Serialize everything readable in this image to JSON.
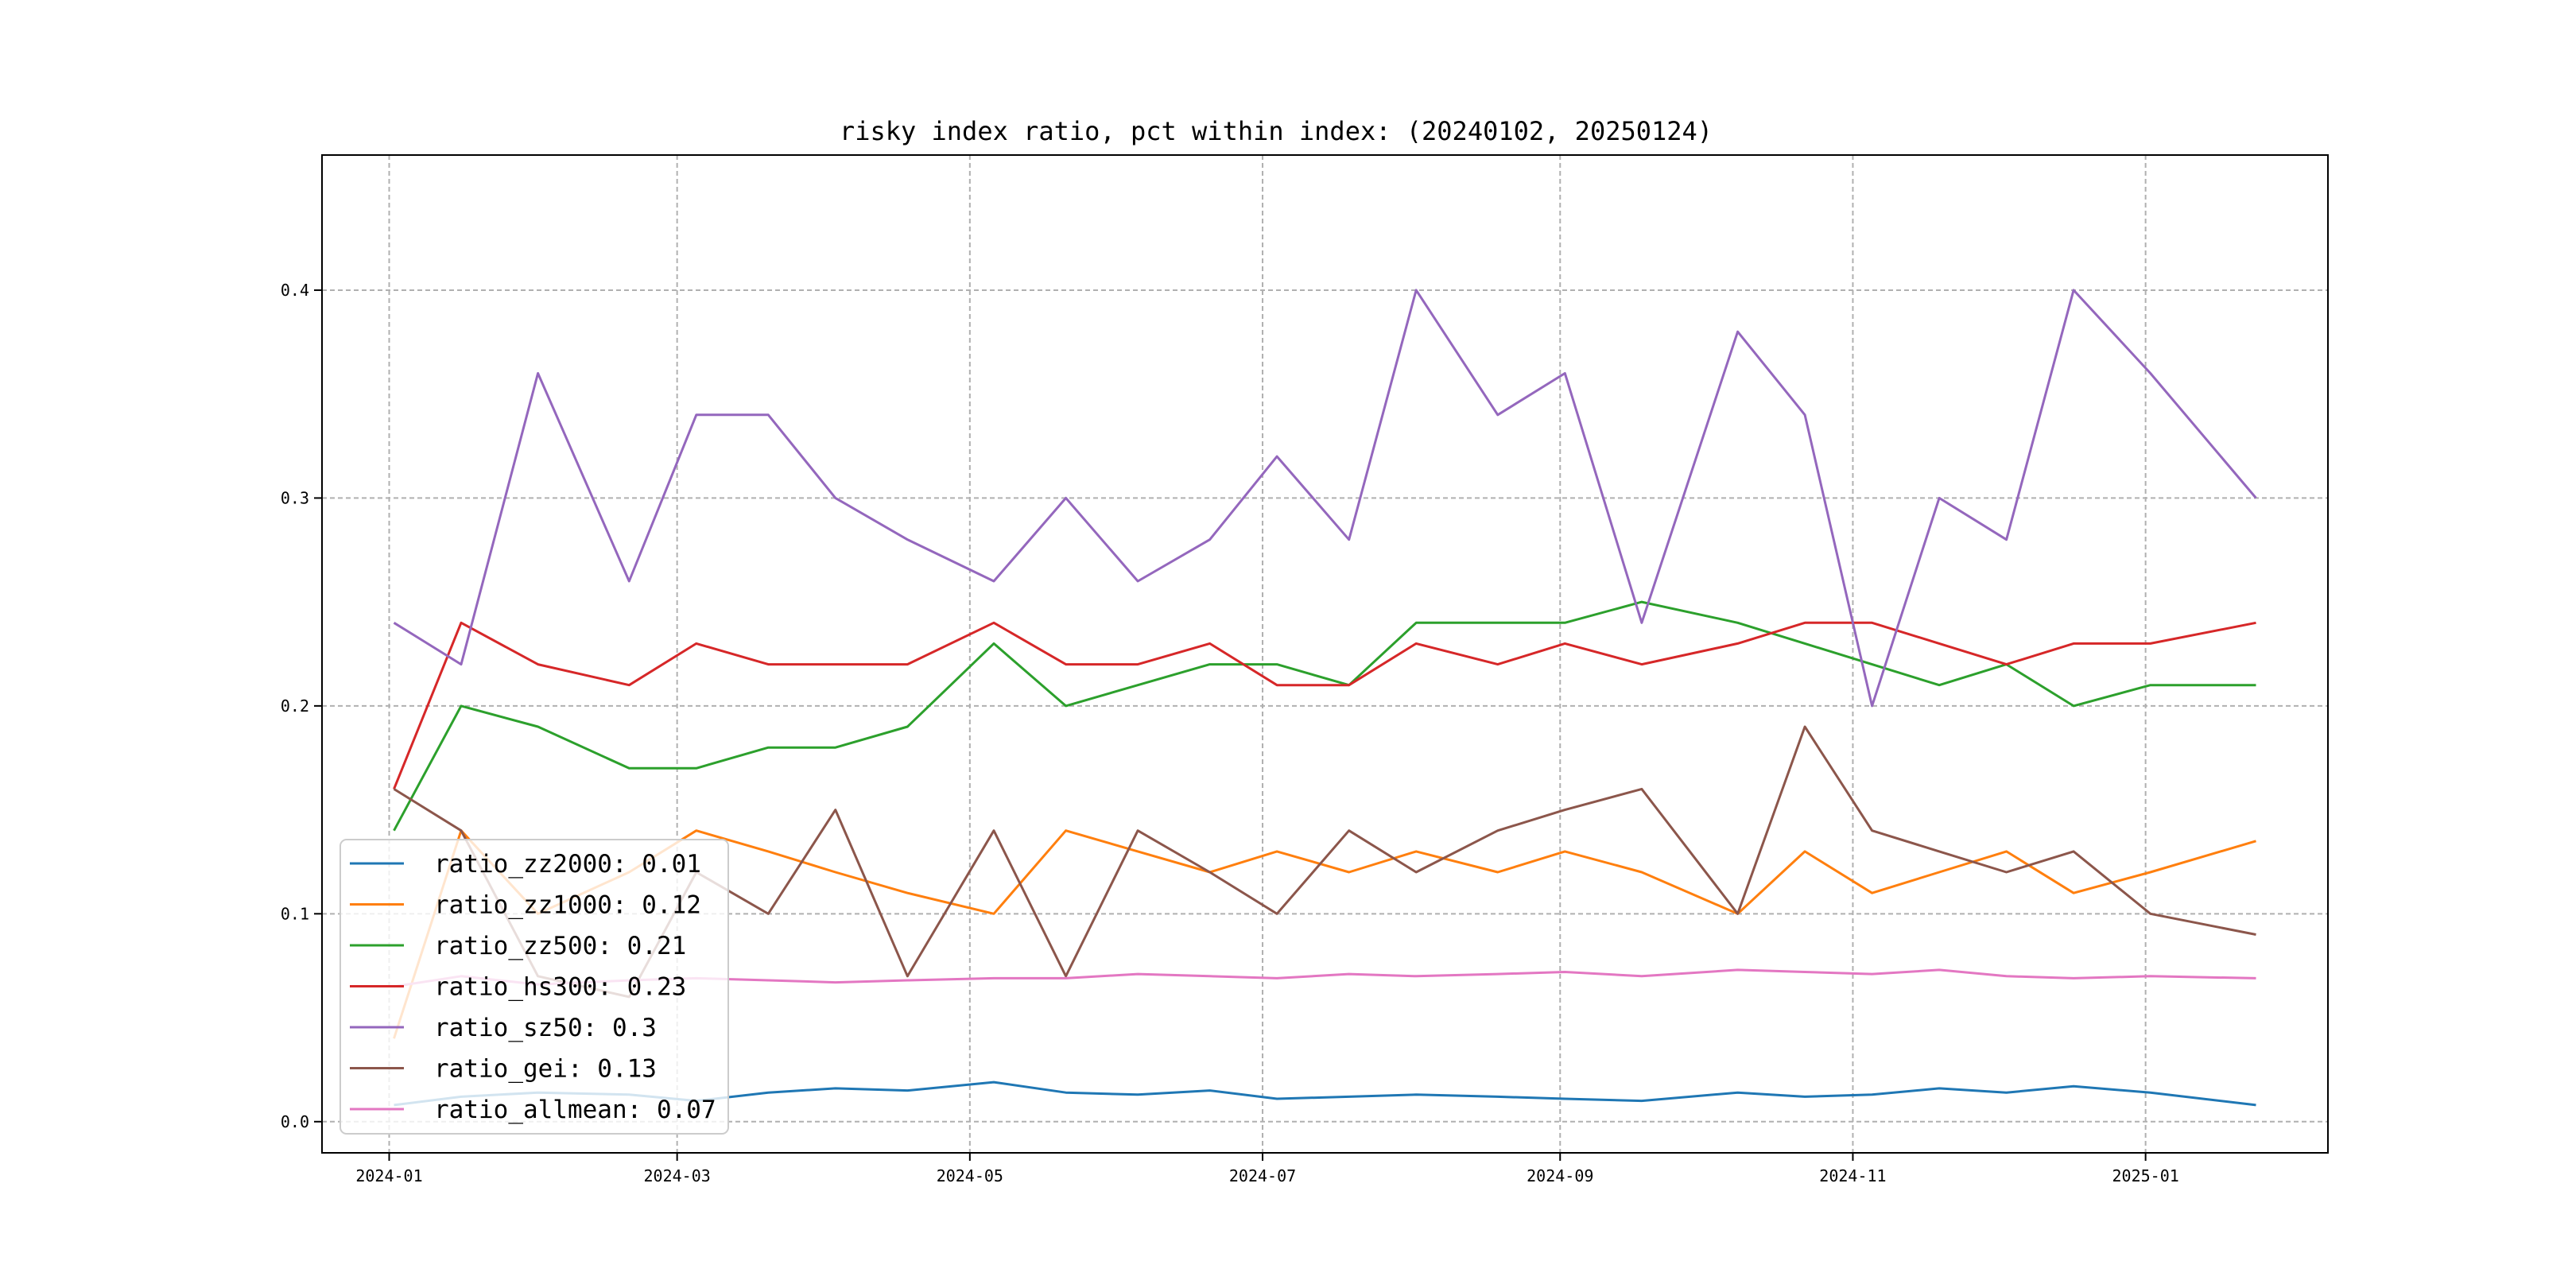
{
  "chart_data": {
    "type": "line",
    "title": "risky index ratio, pct within index: (20240102, 20250124)",
    "xlabel": "",
    "ylabel": "",
    "grid": true,
    "legend_position": "lower-left",
    "x_range": [
      "2023-12-18",
      "2025-02-08"
    ],
    "ylim": [
      -0.015,
      0.465
    ],
    "x_ticks": [
      {
        "date": "2024-01-01",
        "label": "2024-01"
      },
      {
        "date": "2024-03-01",
        "label": "2024-03"
      },
      {
        "date": "2024-05-01",
        "label": "2024-05"
      },
      {
        "date": "2024-07-01",
        "label": "2024-07"
      },
      {
        "date": "2024-09-01",
        "label": "2024-09"
      },
      {
        "date": "2024-11-01",
        "label": "2024-11"
      },
      {
        "date": "2025-01-01",
        "label": "2025-01"
      }
    ],
    "y_ticks": [
      {
        "value": 0.0,
        "label": "0.0"
      },
      {
        "value": 0.1,
        "label": "0.1"
      },
      {
        "value": 0.2,
        "label": "0.2"
      },
      {
        "value": 0.3,
        "label": "0.3"
      },
      {
        "value": 0.4,
        "label": "0.4"
      }
    ],
    "x": [
      "2024-01-02",
      "2024-01-16",
      "2024-02-01",
      "2024-02-20",
      "2024-03-05",
      "2024-03-20",
      "2024-04-03",
      "2024-04-18",
      "2024-05-06",
      "2024-05-21",
      "2024-06-05",
      "2024-06-20",
      "2024-07-04",
      "2024-07-19",
      "2024-08-02",
      "2024-08-19",
      "2024-09-02",
      "2024-09-18",
      "2024-10-08",
      "2024-10-22",
      "2024-11-05",
      "2024-11-19",
      "2024-12-03",
      "2024-12-17",
      "2025-01-02",
      "2025-01-24"
    ],
    "series": [
      {
        "name": "ratio_zz2000",
        "color": "#1f77b4",
        "values": [
          0.008,
          0.012,
          0.014,
          0.013,
          0.01,
          0.014,
          0.016,
          0.015,
          0.019,
          0.014,
          0.013,
          0.015,
          0.011,
          0.012,
          0.013,
          0.012,
          0.011,
          0.01,
          0.014,
          0.012,
          0.013,
          0.016,
          0.014,
          0.017,
          0.014,
          0.008
        ]
      },
      {
        "name": "ratio_zz1000",
        "color": "#ff7f0e",
        "values": [
          0.04,
          0.14,
          0.1,
          0.12,
          0.14,
          0.13,
          0.12,
          0.11,
          0.1,
          0.14,
          0.13,
          0.12,
          0.13,
          0.12,
          0.13,
          0.12,
          0.13,
          0.12,
          0.1,
          0.13,
          0.11,
          0.12,
          0.13,
          0.11,
          0.12,
          0.135
        ]
      },
      {
        "name": "ratio_zz500",
        "color": "#2ca02c",
        "values": [
          0.14,
          0.2,
          0.19,
          0.17,
          0.17,
          0.18,
          0.18,
          0.19,
          0.23,
          0.2,
          0.21,
          0.22,
          0.22,
          0.21,
          0.24,
          0.24,
          0.24,
          0.25,
          0.24,
          0.23,
          0.22,
          0.21,
          0.22,
          0.2,
          0.21,
          0.21
        ]
      },
      {
        "name": "ratio_hs300",
        "color": "#d62728",
        "values": [
          0.16,
          0.24,
          0.22,
          0.21,
          0.23,
          0.22,
          0.22,
          0.22,
          0.24,
          0.22,
          0.22,
          0.23,
          0.21,
          0.21,
          0.23,
          0.22,
          0.23,
          0.22,
          0.23,
          0.24,
          0.24,
          0.23,
          0.22,
          0.23,
          0.23,
          0.24
        ]
      },
      {
        "name": "ratio_sz50",
        "color": "#9467bd",
        "values": [
          0.24,
          0.22,
          0.36,
          0.26,
          0.34,
          0.34,
          0.3,
          0.28,
          0.26,
          0.3,
          0.26,
          0.28,
          0.32,
          0.28,
          0.4,
          0.34,
          0.36,
          0.24,
          0.38,
          0.34,
          0.2,
          0.3,
          0.28,
          0.4,
          0.36,
          0.3
        ]
      },
      {
        "name": "ratio_gei",
        "color": "#8c564b",
        "values": [
          0.16,
          0.14,
          0.07,
          0.06,
          0.12,
          0.1,
          0.15,
          0.07,
          0.14,
          0.07,
          0.14,
          0.12,
          0.1,
          0.14,
          0.12,
          0.14,
          0.15,
          0.16,
          0.1,
          0.19,
          0.14,
          0.13,
          0.12,
          0.13,
          0.1,
          0.09
        ]
      },
      {
        "name": "ratio_allmean",
        "color": "#e377c2",
        "values": [
          0.065,
          0.07,
          0.066,
          0.068,
          0.069,
          0.068,
          0.067,
          0.068,
          0.069,
          0.069,
          0.071,
          0.07,
          0.069,
          0.071,
          0.07,
          0.071,
          0.072,
          0.07,
          0.073,
          0.072,
          0.071,
          0.073,
          0.07,
          0.069,
          0.07,
          0.069
        ]
      }
    ],
    "legend": [
      {
        "label": "ratio_zz2000: 0.01"
      },
      {
        "label": "ratio_zz1000: 0.12"
      },
      {
        "label": "ratio_zz500: 0.21"
      },
      {
        "label": "ratio_hs300: 0.23"
      },
      {
        "label": "ratio_sz50: 0.3"
      },
      {
        "label": "ratio_gei: 0.13"
      },
      {
        "label": "ratio_allmean: 0.07"
      }
    ]
  }
}
